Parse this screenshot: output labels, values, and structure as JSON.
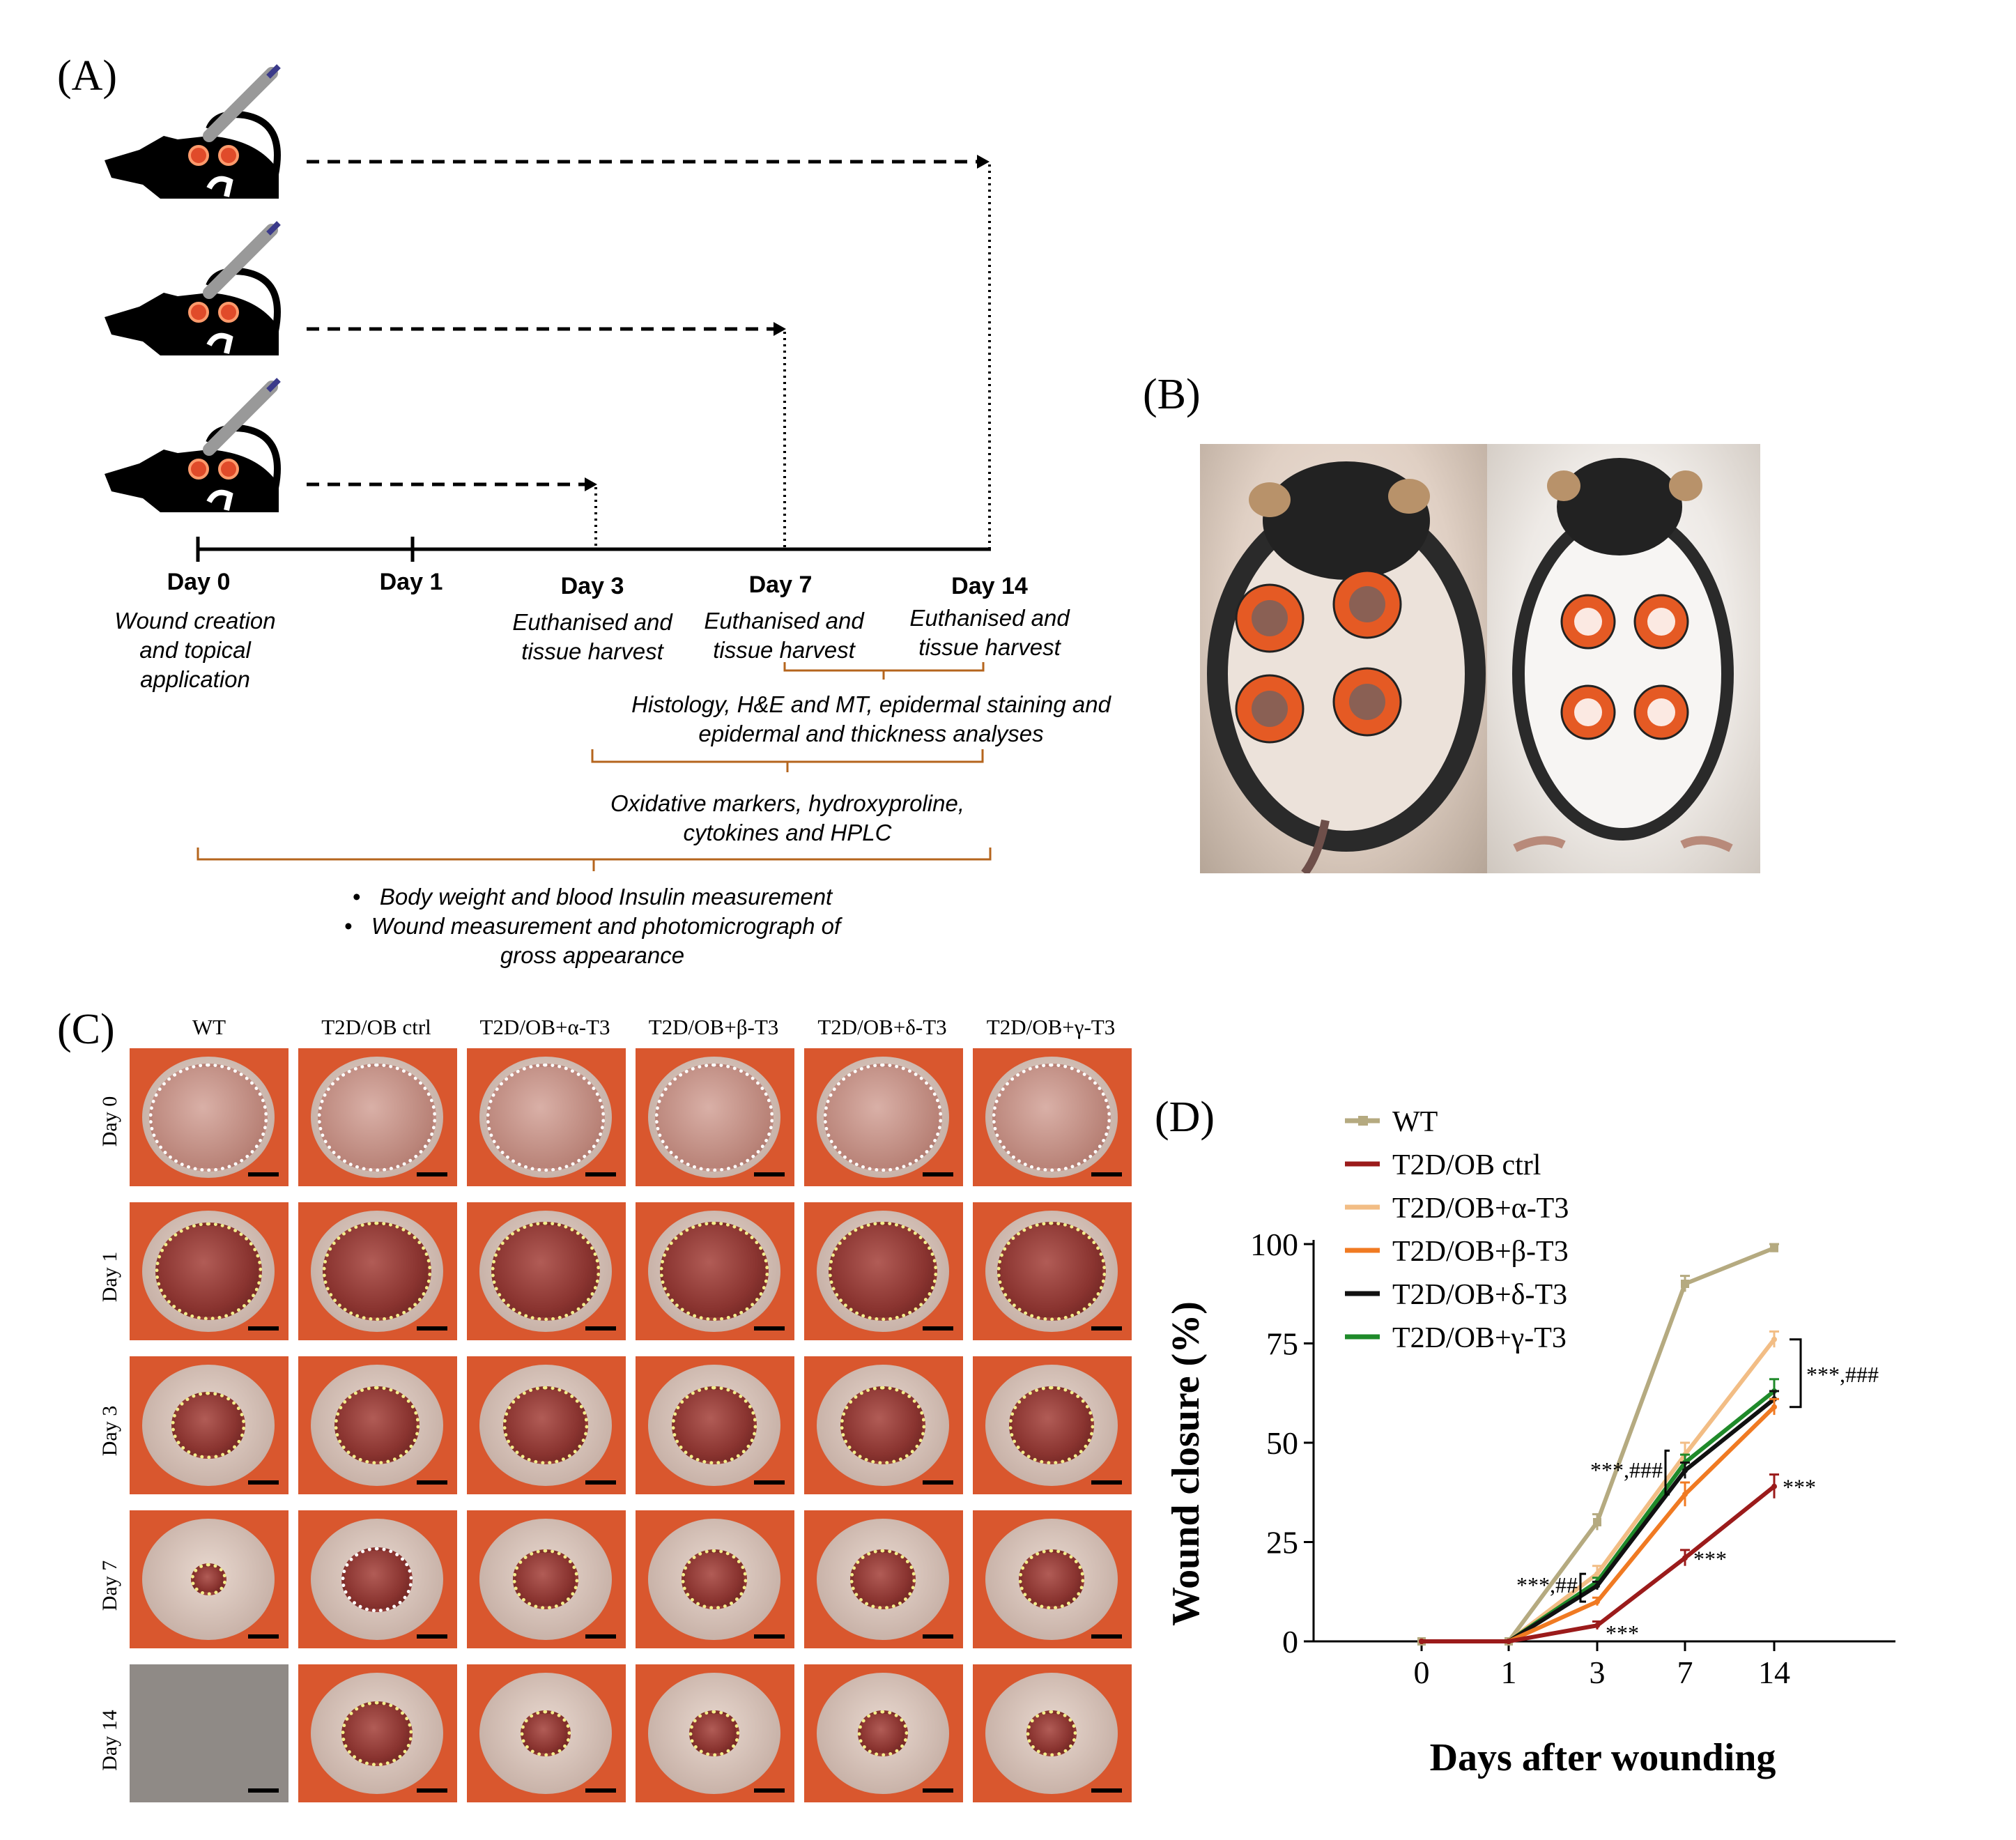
{
  "panels": {
    "a": "(A)",
    "b": "(B)",
    "c": "(C)",
    "d": "(D)"
  },
  "timeline": {
    "days": [
      "Day 0",
      "Day 1",
      "Day 3",
      "Day 7",
      "Day 14"
    ],
    "notes": {
      "day0": [
        "Wound creation",
        "and topical",
        "application"
      ],
      "day3": [
        "Euthanised and",
        "tissue harvest"
      ],
      "day7": [
        "Euthanised and",
        "tissue harvest"
      ],
      "day14": [
        "Euthanised and",
        "tissue harvest"
      ]
    },
    "brace_histology": [
      "Histology, H&E and MT, epidermal staining and",
      "epidermal and thickness analyses"
    ],
    "brace_oxidative": [
      "Oxidative markers, hydroxyproline,",
      "cytokines and HPLC"
    ],
    "bullets": [
      "Body weight and blood Insulin measurement",
      "Wound measurement and photomicrograph of",
      "gross appearance"
    ],
    "bullet_char": "•"
  },
  "gross_grid": {
    "columns": [
      "WT",
      "T2D/OB ctrl",
      "T2D/OB+α-T3",
      "T2D/OB+β-T3",
      "T2D/OB+δ-T3",
      "T2D/OB+γ-T3"
    ],
    "rows": [
      "Day 0",
      "Day 1",
      "Day 3",
      "Day 7",
      "Day 14"
    ]
  },
  "colors": {
    "WT": "#b5aa80",
    "ctrl": "#9b1b1b",
    "alpha": "#f2bd85",
    "beta": "#f07a22",
    "delta": "#111111",
    "gamma": "#1f8a2a",
    "brace": "#b5651d"
  },
  "chart_data": {
    "type": "line",
    "x": [
      "0",
      "1",
      "3",
      "7",
      "14"
    ],
    "ylabel": "Wound closure (%)",
    "xlabel": "Days after wounding",
    "ylim": [
      0,
      100
    ],
    "yticks": [
      "0",
      "25",
      "50",
      "75",
      "100"
    ],
    "legend_position": "top-left",
    "series": [
      {
        "name": "WT",
        "values": [
          0,
          0,
          30,
          90,
          99
        ],
        "errors": [
          0,
          0,
          2,
          2,
          1
        ],
        "marker": "square"
      },
      {
        "name": "T2D/OB ctrl",
        "values": [
          0,
          0,
          4,
          21,
          39
        ],
        "errors": [
          0,
          0,
          1,
          2,
          3
        ],
        "marker": "bar"
      },
      {
        "name": "T2D/OB+α-T3",
        "values": [
          0,
          0,
          17,
          47,
          76
        ],
        "errors": [
          0,
          0,
          2,
          3,
          2
        ],
        "marker": "none"
      },
      {
        "name": "T2D/OB+β-T3",
        "values": [
          0,
          0,
          10,
          37,
          59
        ],
        "errors": [
          0,
          0,
          1,
          3,
          2
        ],
        "marker": "none"
      },
      {
        "name": "T2D/OB+δ-T3",
        "values": [
          0,
          0,
          14,
          43,
          61
        ],
        "errors": [
          0,
          0,
          1,
          2,
          2
        ],
        "marker": "none"
      },
      {
        "name": "T2D/OB+γ-T3",
        "values": [
          0,
          0,
          15,
          45,
          63
        ],
        "errors": [
          0,
          0,
          1,
          2,
          3
        ],
        "marker": "none"
      }
    ],
    "annotations": {
      "day3_top": "***,###",
      "day3_bottom": "***,##",
      "ctrl_day3": "***",
      "ctrl_day7": "***",
      "ctrl_day14": "***",
      "day14_group": "***,###"
    }
  }
}
